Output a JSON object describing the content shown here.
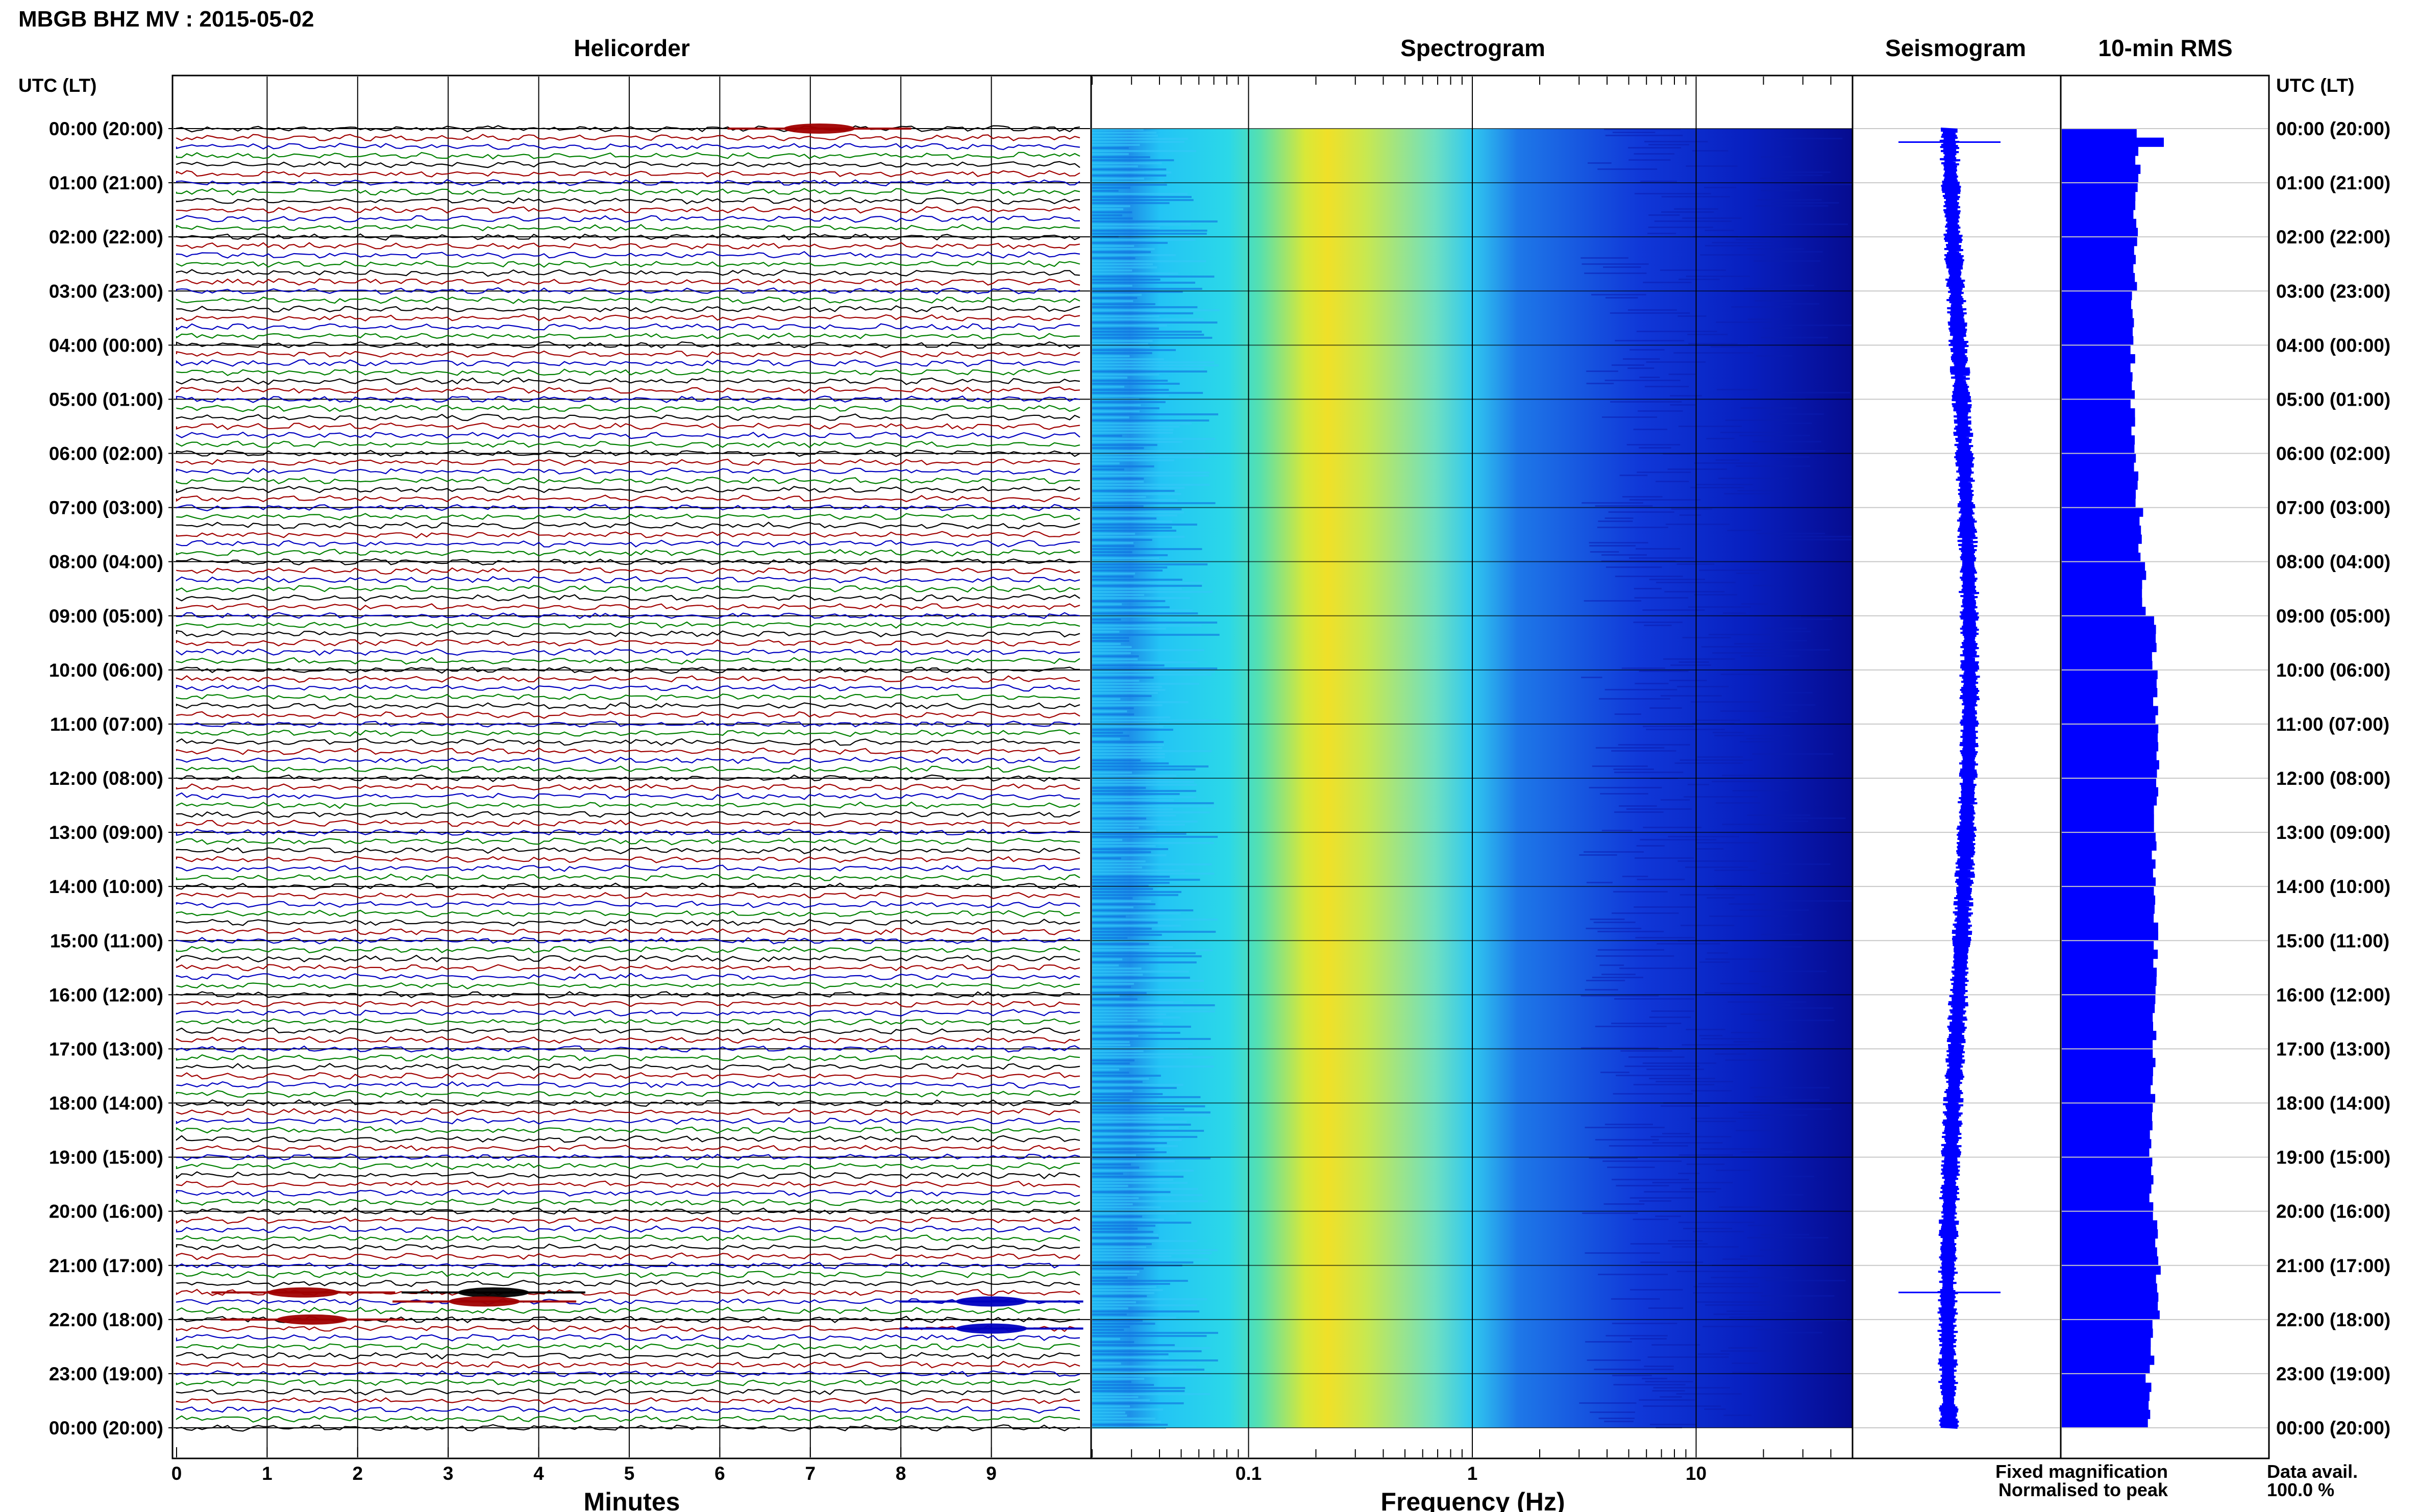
{
  "title": "MBGB BHZ MV : 2015-05-02",
  "utc_header": "UTC (LT)",
  "panels": {
    "helicorder": "Helicorder",
    "spectrogram": "Spectrogram",
    "seismogram": "Seismogram",
    "rms": "10-min RMS"
  },
  "time_labels": [
    "00:00 (20:00)",
    "01:00 (21:00)",
    "02:00 (22:00)",
    "03:00 (23:00)",
    "04:00 (00:00)",
    "05:00 (01:00)",
    "06:00 (02:00)",
    "07:00 (03:00)",
    "08:00 (04:00)",
    "09:00 (05:00)",
    "10:00 (06:00)",
    "11:00 (07:00)",
    "12:00 (08:00)",
    "13:00 (09:00)",
    "14:00 (10:00)",
    "15:00 (11:00)",
    "16:00 (12:00)",
    "17:00 (13:00)",
    "18:00 (14:00)",
    "19:00 (15:00)",
    "20:00 (16:00)",
    "21:00 (17:00)",
    "22:00 (18:00)",
    "23:00 (19:00)",
    "00:00 (20:00)"
  ],
  "x_axes": {
    "minutes": {
      "label": "Minutes",
      "ticks": [
        "0",
        "1",
        "2",
        "3",
        "4",
        "5",
        "6",
        "7",
        "8",
        "9"
      ]
    },
    "frequency": {
      "label": "Frequency (Hz)",
      "ticks": [
        "0.1",
        "1",
        "10"
      ]
    }
  },
  "legend": {
    "fixed": "Fixed magnification",
    "fixed_color": "#0000ff",
    "normalised": "Normalised to peak",
    "normalised_color": "#ff0000"
  },
  "data_avail": {
    "label": "Data avail.",
    "value": "100.0 %"
  },
  "chart_data": {
    "type": "heatmap",
    "helicorder": {
      "minutes_per_line": 10,
      "line_colors": [
        "#000000",
        "#a00000",
        "#0000c0",
        "#008000"
      ],
      "xlim": [
        0,
        10
      ],
      "events": [
        {
          "line": 0,
          "minute": 7.1,
          "color": "#a00000"
        },
        {
          "line": 129,
          "minute": 3.5,
          "color": "#000000"
        },
        {
          "line": 130,
          "minute": 3.4,
          "color": "#a00000"
        },
        {
          "line": 129,
          "minute": 1.4,
          "color": "#a00000"
        },
        {
          "line": 130,
          "minute": 9.0,
          "color": "#0000c0"
        },
        {
          "line": 132,
          "minute": 1.5,
          "color": "#a00000"
        },
        {
          "line": 133,
          "minute": 9.0,
          "color": "#0000c0"
        }
      ]
    },
    "spectrogram": {
      "x_scale": "log",
      "xlim": [
        0.02,
        50
      ],
      "peak_frequency_hz": 0.25,
      "colormap": "jet"
    },
    "seismogram": {
      "color": "#0000ff",
      "events_hours": [
        0.25,
        21.5
      ]
    },
    "rms": {
      "color": "#0000ff",
      "hourly_relative": [
        0.75,
        0.72,
        0.72,
        0.7,
        0.7,
        0.7,
        0.72,
        0.78,
        0.8,
        0.9,
        0.92,
        0.95,
        0.92,
        0.9,
        0.92,
        0.92,
        0.9,
        0.9,
        0.88,
        0.88,
        0.92,
        0.95,
        0.88,
        0.85
      ]
    }
  }
}
